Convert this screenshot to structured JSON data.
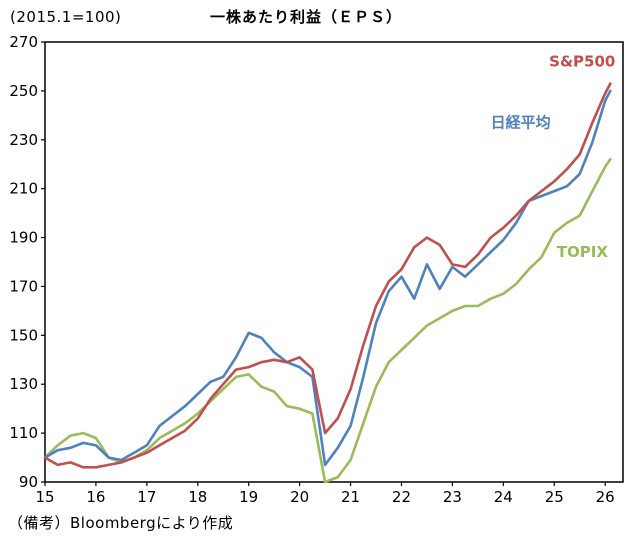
{
  "header": {
    "index_note": "(2015.1=100)",
    "title": "一株あたり利益（ＥＰＳ）"
  },
  "footer": {
    "note": "（備考）Bloombergにより作成"
  },
  "chart_data": {
    "type": "line",
    "title": "一株あたり利益（ＥＰＳ）",
    "index_note": "(2015.1=100)",
    "source_note": "（備考）Bloombergにより作成",
    "xlim": [
      15,
      26.35
    ],
    "ylim": [
      90,
      270
    ],
    "xticks": [
      15,
      16,
      17,
      18,
      19,
      20,
      21,
      22,
      23,
      24,
      25,
      26
    ],
    "yticks": [
      90,
      110,
      130,
      150,
      170,
      190,
      210,
      230,
      250,
      270
    ],
    "grid": false,
    "legend": "inline-labels",
    "x": [
      15,
      15.25,
      15.5,
      15.75,
      16,
      16.25,
      16.5,
      16.75,
      17,
      17.25,
      17.5,
      17.75,
      18,
      18.25,
      18.5,
      18.75,
      19,
      19.25,
      19.5,
      19.75,
      20,
      20.25,
      20.5,
      20.75,
      21,
      21.25,
      21.5,
      21.75,
      22,
      22.25,
      22.5,
      22.75,
      23,
      23.25,
      23.5,
      23.75,
      24,
      24.25,
      24.5,
      24.75,
      25,
      25.25,
      25.5,
      25.75,
      26,
      26.1
    ],
    "series": [
      {
        "name": "TOPIX",
        "color": "#9BBB59",
        "label": {
          "x": 25.05,
          "y": 182
        },
        "values": [
          100,
          105,
          109,
          110,
          108,
          100,
          98,
          100,
          103,
          108,
          111,
          114,
          118,
          123,
          128,
          133,
          134,
          129,
          127,
          121,
          120,
          118,
          90,
          92,
          99,
          114,
          129,
          139,
          144,
          149,
          154,
          157,
          160,
          162,
          162,
          165,
          167,
          171,
          177,
          182,
          192,
          196,
          199,
          209,
          219,
          222
        ]
      },
      {
        "name": "日経平均",
        "color": "#4F81BD",
        "label": {
          "x": 23.75,
          "y": 235
        },
        "values": [
          100,
          103,
          104,
          106,
          105,
          100,
          99,
          102,
          105,
          113,
          117,
          121,
          126,
          131,
          133,
          141,
          151,
          149,
          143,
          139,
          137,
          133,
          97,
          104,
          113,
          133,
          155,
          168,
          174,
          165,
          179,
          169,
          178,
          174,
          179,
          184,
          189,
          196,
          205,
          207,
          209,
          211,
          216,
          229,
          246,
          250
        ]
      },
      {
        "name": "S&P500",
        "color": "#C0504D",
        "label": {
          "x": 24.9,
          "y": 260
        },
        "values": [
          100,
          97,
          98,
          96,
          96,
          97,
          98,
          100,
          102,
          105,
          108,
          111,
          116,
          124,
          130,
          136,
          137,
          139,
          140,
          139,
          141,
          136,
          110,
          116,
          128,
          146,
          162,
          172,
          177,
          186,
          190,
          187,
          179,
          178,
          183,
          190,
          194,
          199,
          205,
          209,
          213,
          218,
          224,
          237,
          249,
          253
        ]
      }
    ]
  }
}
